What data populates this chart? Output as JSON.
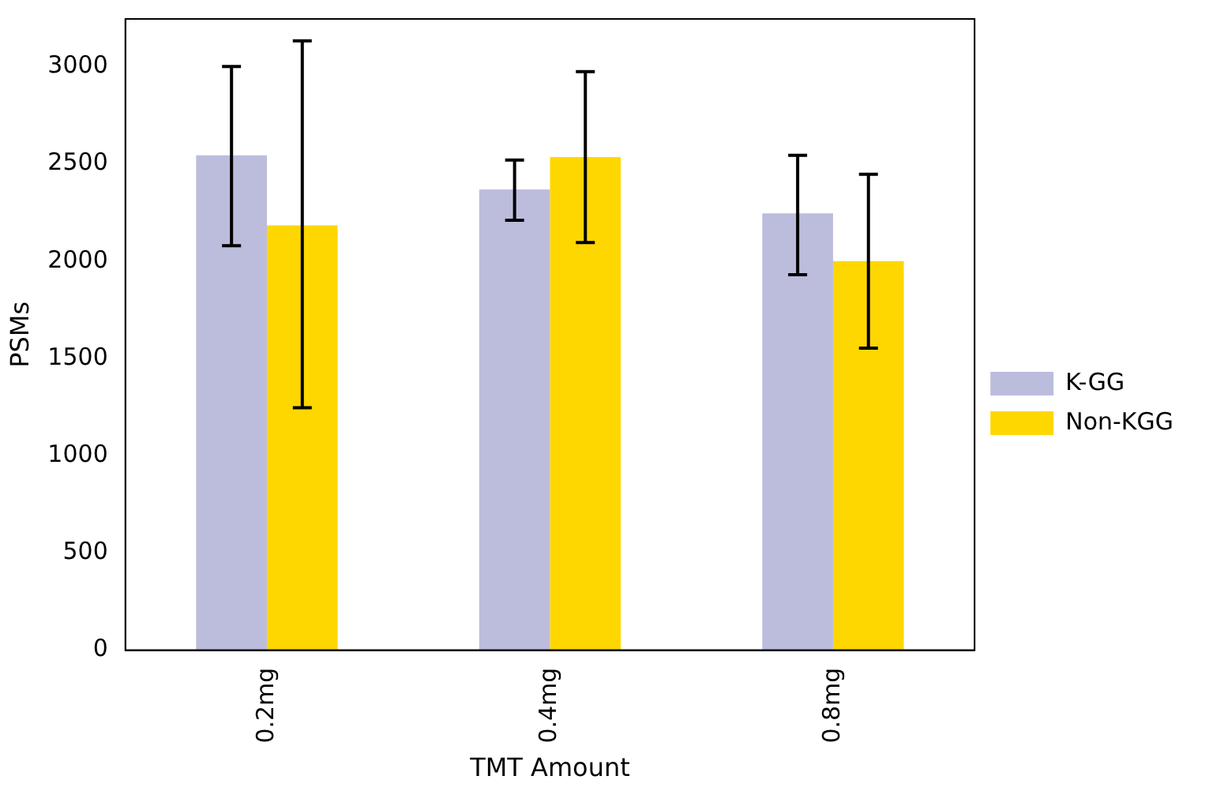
{
  "chart_data": {
    "type": "bar",
    "xlabel": "TMT Amount",
    "ylabel": "PSMs",
    "categories": [
      "0.2mg",
      "0.4mg",
      "0.8mg"
    ],
    "series": [
      {
        "name": "K-GG",
        "color": "#bcbddc",
        "values": [
          2544,
          2368,
          2246
        ],
        "errors": [
          [
            2079,
            3000
          ],
          [
            2210,
            2520
          ],
          [
            1930,
            2544
          ]
        ]
      },
      {
        "name": "Non-KGG",
        "color": "#ffd700",
        "values": [
          2184,
          2535,
          2000
        ],
        "errors": [
          [
            1246,
            3132
          ],
          [
            2096,
            2974
          ],
          [
            1553,
            2447
          ]
        ]
      }
    ],
    "ylim": [
      0,
      3245
    ],
    "yticks": [
      0,
      500,
      1000,
      1500,
      2000,
      2500,
      3000
    ],
    "grid": false,
    "legend": "right"
  }
}
